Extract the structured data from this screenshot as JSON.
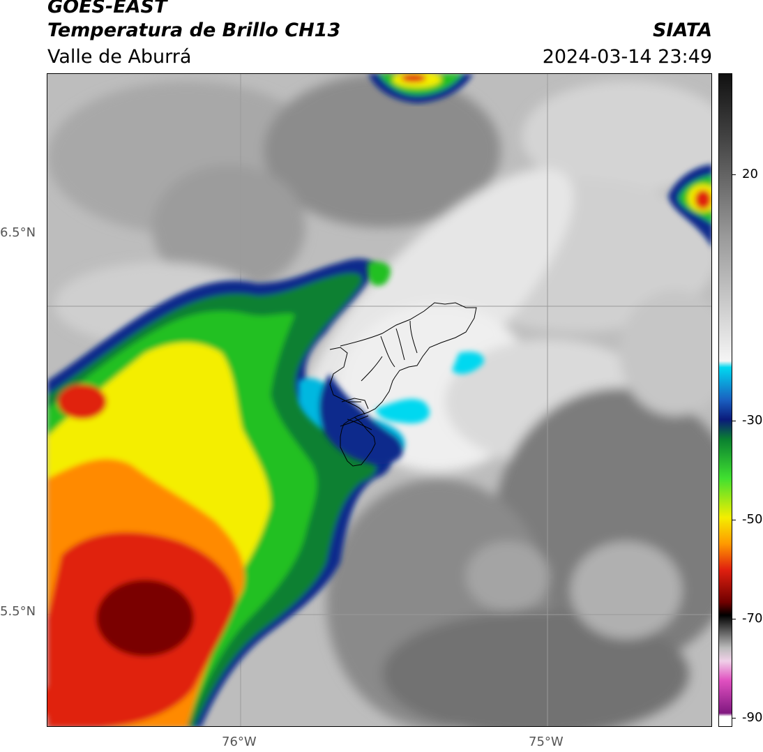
{
  "title": {
    "line1": "GOES-EAST",
    "line2": "Temperatura de Brillo CH13",
    "line3": "Valle de Aburrá",
    "org": "SIATA",
    "datetime": "2024-03-14 23:49"
  },
  "axes": {
    "lat_labels": [
      "6.5°N",
      "5.5°N"
    ],
    "lon_labels": [
      "76°W",
      "75°W"
    ]
  },
  "colorbar": {
    "ticks": [
      "20",
      "-30",
      "-50",
      "-70",
      "-90"
    ],
    "colors": {
      "cold_dark_red": "#7a0000",
      "red": "#e0200f",
      "orange": "#ff8a00",
      "yellow": "#f4ee00",
      "green": "#22c020",
      "dark_green": "#0a8030",
      "navy": "#0a2a8c",
      "cyan": "#00d8f0",
      "light_gray": "#f0f0f0",
      "dark_gray": "#6e6e6e",
      "magenta": "#e050c0"
    }
  }
}
